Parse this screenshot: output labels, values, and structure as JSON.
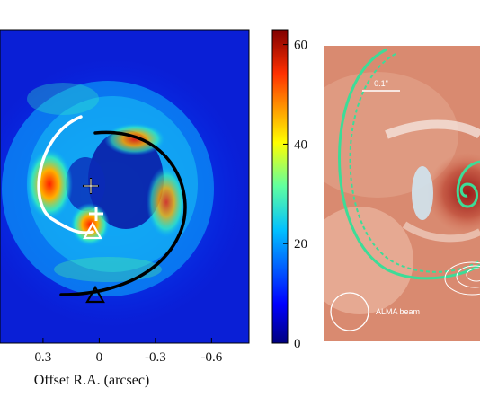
{
  "panel_left": {
    "x_ticks": [
      "0.3",
      "0",
      "-0.3",
      "-0.6"
    ],
    "x_tick_values": [
      0.3,
      0,
      -0.3,
      -0.6
    ],
    "x_range": [
      0.53,
      -0.8
    ],
    "xlabel": "Offset R.A. (arcsec)"
  },
  "colorbar": {
    "ticks": [
      "60",
      "40",
      "20",
      "0"
    ],
    "tick_values": [
      60,
      40,
      20,
      0
    ],
    "range": [
      0,
      63
    ],
    "colormap": "jet"
  },
  "panel_right": {
    "scale_label": "0.1\"",
    "beam_label": "ALMA beam",
    "spiral_color": "#3ddc97"
  },
  "chart_data": {
    "type": "heatmap",
    "xlabel": "Offset R.A. (arcsec)",
    "x_ticks": [
      0.3,
      0,
      -0.3,
      -0.6
    ],
    "colorbar_ticks": [
      0,
      20,
      40,
      60
    ],
    "colorbar_range": [
      0,
      63
    ]
  }
}
